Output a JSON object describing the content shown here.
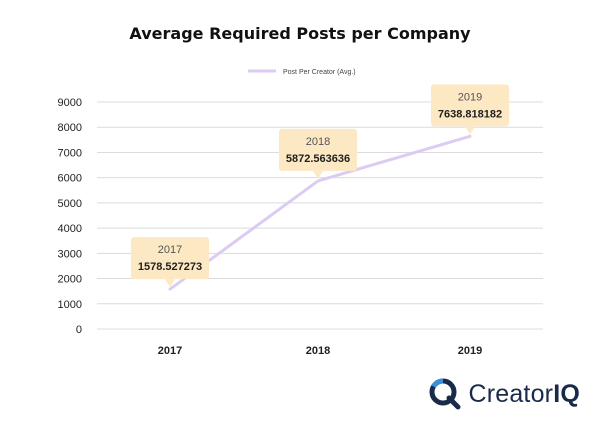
{
  "chart_data": {
    "type": "line",
    "title": "Average Required Posts per Company",
    "categories": [
      "2017",
      "2018",
      "2019"
    ],
    "series": [
      {
        "name": "Post Per Creator (Avg.)",
        "values": [
          1578.527273,
          5872.563636,
          7638.818182
        ],
        "color": "#dccbf3"
      }
    ],
    "ylim": [
      0,
      9000
    ],
    "yticks": [
      "0",
      "1000",
      "2000",
      "3000",
      "4000",
      "5000",
      "6000",
      "7000",
      "8000",
      "9000"
    ],
    "grid": true,
    "legend_position": "top-center",
    "annotations": [
      {
        "year": "2017",
        "value": "1578.527273"
      },
      {
        "year": "2018",
        "value": "5872.563636"
      },
      {
        "year": "2019",
        "value": "7638.818182"
      }
    ],
    "annotation_color": "#fde8c4",
    "xlabel": "",
    "ylabel": ""
  },
  "brand": {
    "name_light": "Creator",
    "name_bold": "IQ",
    "icon": "magnifier-q-icon",
    "color": "#1a2b4a",
    "accent": "#3b8fd8"
  }
}
